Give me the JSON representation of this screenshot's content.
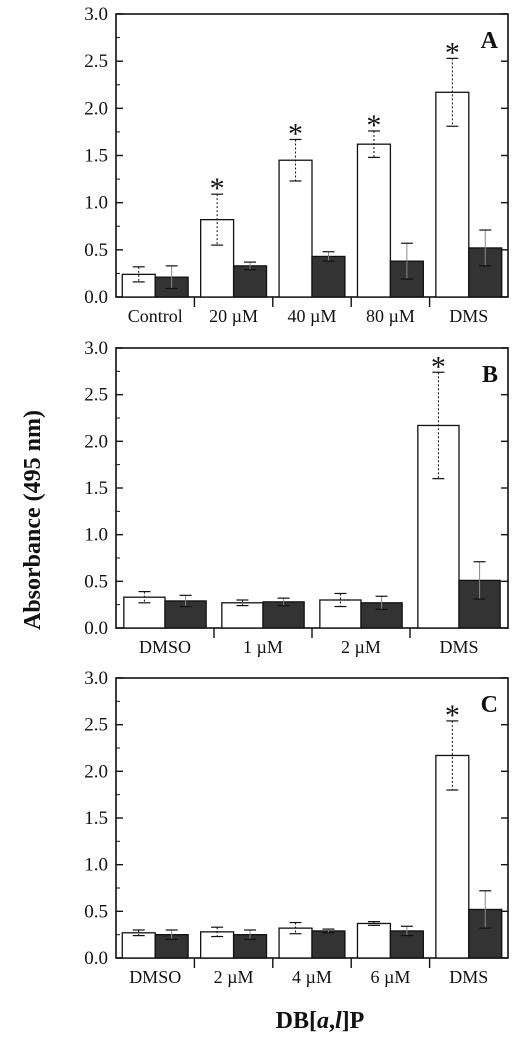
{
  "chart_data": [
    {
      "type": "bar",
      "panel_label": "A",
      "categories": [
        "Control",
        "20 µM",
        "40 µM",
        "80 µM",
        "DMS"
      ],
      "series": [
        {
          "fill": "#ffffff",
          "values": [
            0.24,
            0.82,
            1.45,
            1.62,
            2.17
          ],
          "errors": [
            0.08,
            0.27,
            0.22,
            0.14,
            0.36
          ]
        },
        {
          "fill": "#333333",
          "values": [
            0.21,
            0.33,
            0.43,
            0.38,
            0.52
          ],
          "errors": [
            0.12,
            0.04,
            0.05,
            0.19,
            0.19
          ]
        }
      ],
      "significant": [
        false,
        true,
        true,
        true,
        true
      ],
      "significance_marker": "*",
      "ylim": [
        0,
        3.0
      ],
      "yticks": [
        "0.0",
        "0.5",
        "1.0",
        "1.5",
        "2.0",
        "2.5",
        "3.0"
      ]
    },
    {
      "type": "bar",
      "panel_label": "B",
      "categories": [
        "DMSO",
        "1 µM",
        "2 µM",
        "DMS"
      ],
      "series": [
        {
          "fill": "#ffffff",
          "values": [
            0.33,
            0.27,
            0.3,
            2.17
          ],
          "errors": [
            0.06,
            0.03,
            0.07,
            0.57
          ]
        },
        {
          "fill": "#333333",
          "values": [
            0.29,
            0.28,
            0.27,
            0.51
          ],
          "errors": [
            0.06,
            0.04,
            0.07,
            0.2
          ]
        }
      ],
      "significant": [
        false,
        false,
        false,
        true
      ],
      "significance_marker": "*",
      "ylim": [
        0,
        3.0
      ],
      "yticks": [
        "0.0",
        "0.5",
        "1.0",
        "1.5",
        "2.0",
        "2.5",
        "3.0"
      ]
    },
    {
      "type": "bar",
      "panel_label": "C",
      "categories": [
        "DMSO",
        "2 µM",
        "4 µM",
        "6 µM",
        "DMS"
      ],
      "series": [
        {
          "fill": "#ffffff",
          "values": [
            0.27,
            0.28,
            0.32,
            0.37,
            2.17
          ],
          "errors": [
            0.03,
            0.05,
            0.06,
            0.02,
            0.37
          ]
        },
        {
          "fill": "#333333",
          "values": [
            0.25,
            0.25,
            0.29,
            0.29,
            0.52
          ],
          "errors": [
            0.05,
            0.05,
            0.02,
            0.05,
            0.2
          ]
        }
      ],
      "significant": [
        false,
        false,
        false,
        false,
        true
      ],
      "significance_marker": "*",
      "ylim": [
        0,
        3.0
      ],
      "yticks": [
        "0.0",
        "0.5",
        "1.0",
        "1.5",
        "2.0",
        "2.5",
        "3.0"
      ]
    }
  ],
  "ylabel": "Absorbance (495 nm)",
  "xlabel": "DB[a,l]P"
}
